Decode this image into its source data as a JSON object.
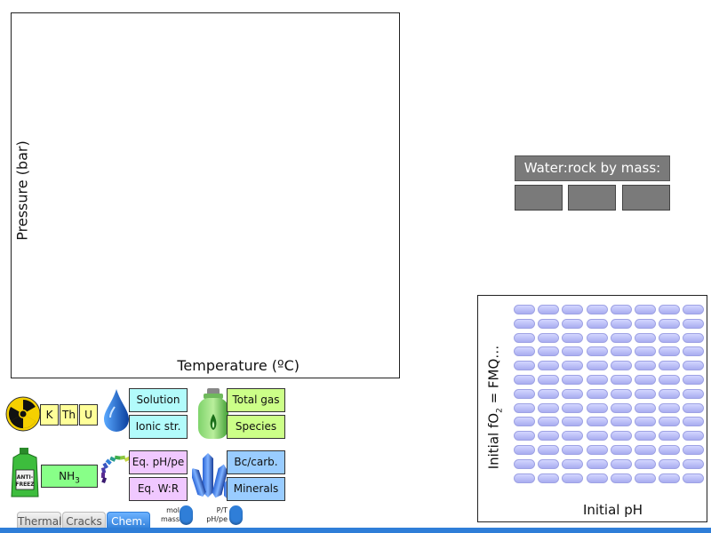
{
  "plot": {
    "ylabel": "Pressure (bar)",
    "xlabel": "Temperature (ºC)"
  },
  "water_rock": {
    "title": "Water:rock by mass:",
    "boxes": [
      "",
      "",
      ""
    ]
  },
  "initial_grid": {
    "ylabel_prefix": "Initial fO",
    "ylabel_sub": "2",
    "ylabel_suffix": " = FMQ…",
    "xlabel": "Initial pH",
    "cols": 8,
    "rows": 13,
    "cell_color": "#b9bcf5"
  },
  "controls": {
    "radioactive": {
      "icon": "radiation-icon",
      "buttons": [
        "K",
        "Th",
        "U"
      ]
    },
    "solution": {
      "icon": "water-drop-icon",
      "buttons": [
        "Solution",
        "Ionic str."
      ]
    },
    "gas": {
      "icon": "gas-tank-icon",
      "buttons": [
        "Total gas",
        "Species"
      ]
    },
    "antifreeze": {
      "icon": "antifreeze-bottle-icon",
      "bottle_text": "ANTI-FREEZ",
      "button_prefix": "NH",
      "button_sub": "3"
    },
    "equilibrium": {
      "icon": "ph-scale-icon",
      "buttons": [
        "Eq. pH/pe",
        "Eq. W:R"
      ]
    },
    "minerals": {
      "icon": "crystal-icon",
      "buttons": [
        "Bc/carb.",
        "Minerals"
      ]
    },
    "toggle1": {
      "top": "mol",
      "bottom": "mass"
    },
    "toggle2": {
      "top": "P/T",
      "bottom": "pH/pe"
    }
  },
  "tabs": [
    {
      "label": "Thermal",
      "active": false
    },
    {
      "label": "Cracks",
      "active": false
    },
    {
      "label": "Chem.",
      "active": true
    }
  ],
  "colors": {
    "accent": "#2f7ed8",
    "yellow": "#ffff99",
    "cyan": "#b2fbfb",
    "green": "#ccff88",
    "purple": "#f0c8ff",
    "blue": "#99ccff"
  }
}
